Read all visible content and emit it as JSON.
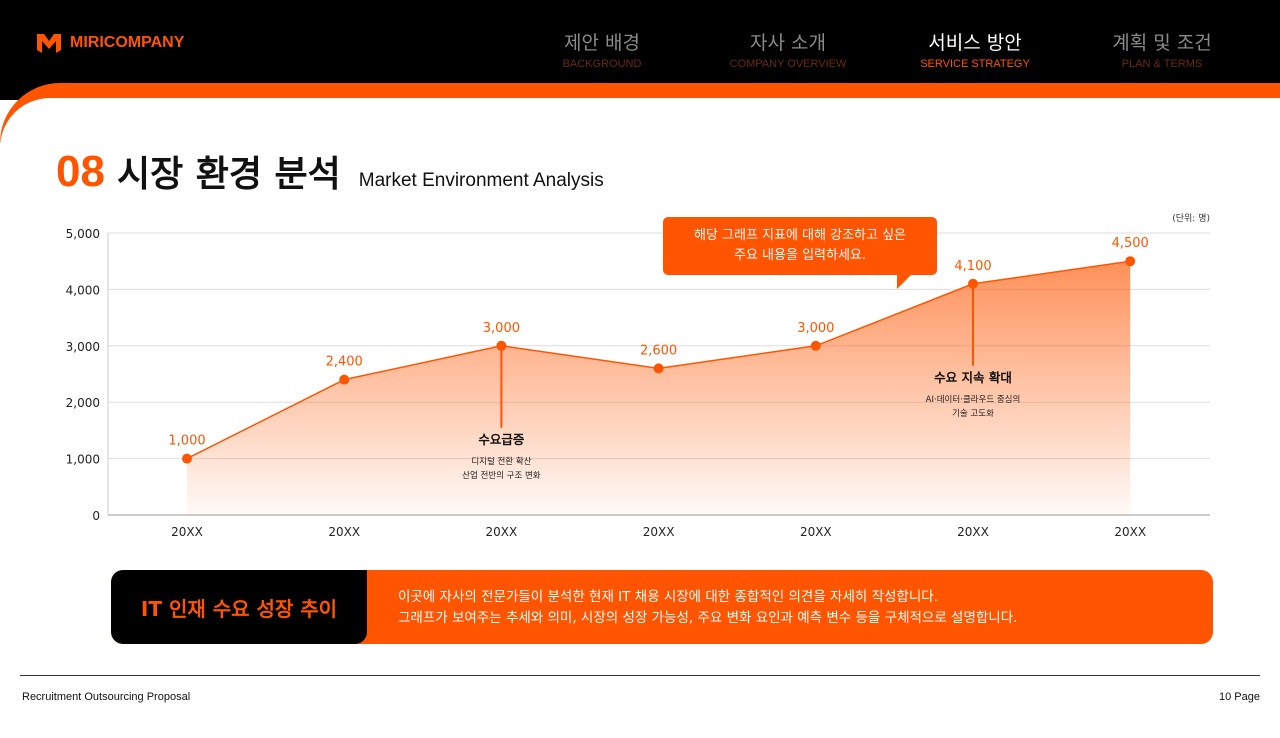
{
  "brand": {
    "name": "MIRICOMPANY",
    "accent": "#ff5500"
  },
  "nav": [
    {
      "ko": "제안 배경",
      "en": "BACKGROUND",
      "active": false
    },
    {
      "ko": "자사 소개",
      "en": "COMPANY OVERVIEW",
      "active": false
    },
    {
      "ko": "서비스 방안",
      "en": "SERVICE STRATEGY",
      "active": true
    },
    {
      "ko": "계획 및 조건",
      "en": "PLAN & TERMS",
      "active": false
    }
  ],
  "page": {
    "number": "08",
    "title": "시장 환경 분석",
    "subtitle": "Market Environment Analysis"
  },
  "callout": {
    "line1": "해당 그래프 지표에 대해 강조하고 싶은",
    "line2": "주요 내용을 입력하세요."
  },
  "chart_data": {
    "type": "area",
    "unit": "(단위: 명)",
    "categories": [
      "20XX",
      "20XX",
      "20XX",
      "20XX",
      "20XX",
      "20XX",
      "20XX"
    ],
    "values": [
      1000,
      2400,
      3000,
      2600,
      3000,
      4100,
      4500
    ],
    "value_labels": [
      "1,000",
      "2,400",
      "3,000",
      "2,600",
      "3,000",
      "4,100",
      "4,500"
    ],
    "yticks": [
      "0",
      "1,000",
      "2,000",
      "3,000",
      "4,000",
      "5,000"
    ],
    "ylim": [
      0,
      5000
    ],
    "grid": true,
    "color": "#ff5500",
    "annotations": [
      {
        "index": 2,
        "title": "수요급증",
        "lines": [
          "디지털 전환 확산",
          "산업 전반의 구조 변화"
        ]
      },
      {
        "index": 5,
        "title": "수요 지속 확대",
        "lines": [
          "AI·데이터·클라우드 중심의",
          "기술 고도화"
        ]
      }
    ]
  },
  "summary": {
    "label": "IT 인재 수요 성장 추이",
    "line1": "이곳에 자사의 전문가들이 분석한 현재 IT 채용 시장에 대한 종합적인 의견을 자세히 작성합니다.",
    "line2": "그래프가 보여주는 추세와 의미, 시장의 성장 가능성, 주요 변화 요인과 예측 변수 등을 구체적으로  설명합니다."
  },
  "footer": {
    "left": "Recruitment Outsourcing Proposal",
    "right": "10 Page"
  }
}
